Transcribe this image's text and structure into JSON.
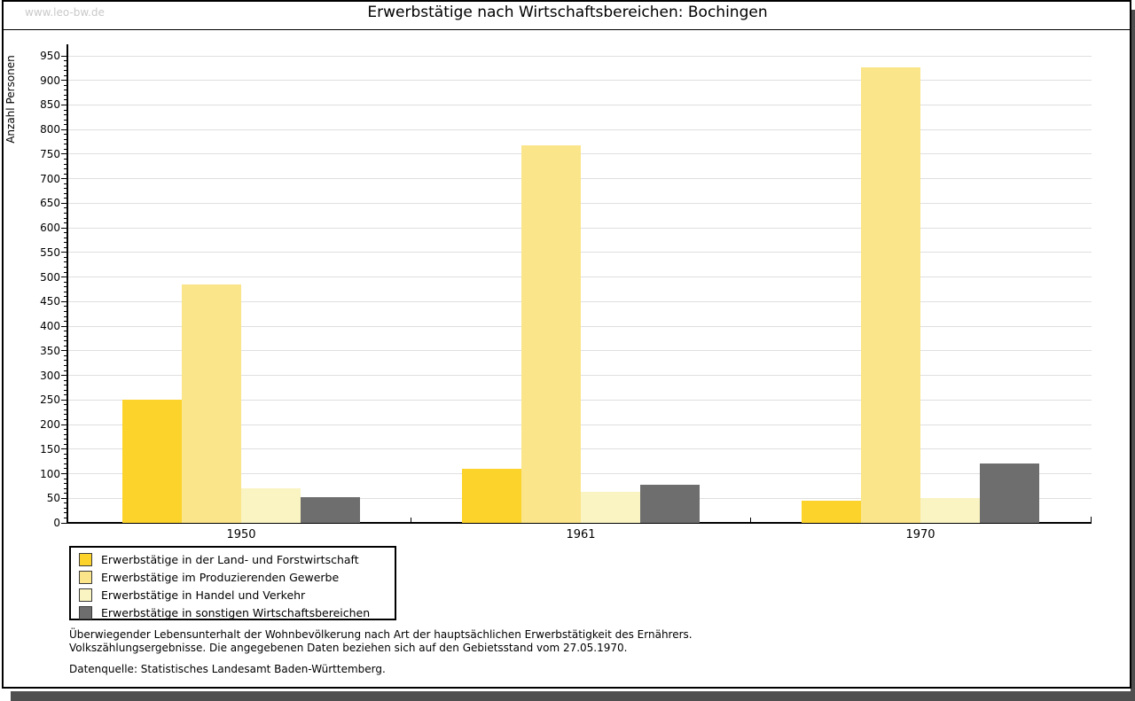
{
  "watermark": "www.leo-bw.de",
  "title": "Erwerbstätige nach Wirtschaftsbereichen: Bochingen",
  "chart_data": {
    "type": "bar",
    "title": "Erwerbstätige nach Wirtschaftsbereichen: Bochingen",
    "xlabel": "",
    "ylabel": "Anzahl Personen",
    "categories": [
      "1950",
      "1961",
      "1970"
    ],
    "series": [
      {
        "name": "Erwerbstätige in der Land- und Forstwirtschaft",
        "color": "#FBD32B",
        "values": [
          250,
          110,
          45
        ]
      },
      {
        "name": "Erwerbstätige im Produzierenden Gewerbe",
        "color": "#FBE58A",
        "values": [
          485,
          768,
          926
        ]
      },
      {
        "name": "Erwerbstätige in Handel und Verkehr",
        "color": "#FAF3C2",
        "values": [
          70,
          63,
          50
        ]
      },
      {
        "name": "Erwerbstätige in sonstigen Wirtschaftsbereichen",
        "color": "#6E6E6E",
        "values": [
          52,
          78,
          120
        ]
      }
    ],
    "ylim": [
      0,
      950
    ],
    "yticks": [
      0,
      50,
      100,
      150,
      200,
      250,
      300,
      350,
      400,
      450,
      500,
      550,
      600,
      650,
      700,
      750,
      800,
      850,
      900,
      950
    ],
    "ytick_step": 50,
    "minor_tick_step": 10,
    "grid": "horizontal",
    "legend_position": "bottom-left"
  },
  "colors": {
    "grid": "#DFDFDF",
    "axis": "#000000",
    "watermark": "#C9C9C9",
    "frame_shadow": "#4F4F4F"
  },
  "footer": {
    "line1": "Überwiegender Lebensunterhalt der Wohnbevölkerung nach Art der hauptsächlichen Erwerbstätigkeit des Ernährers.",
    "line2": "Volkszählungsergebnisse. Die angegebenen Daten beziehen sich auf den Gebietsstand vom 27.05.1970.",
    "source": "Datenquelle: Statistisches Landesamt Baden-Württemberg."
  }
}
